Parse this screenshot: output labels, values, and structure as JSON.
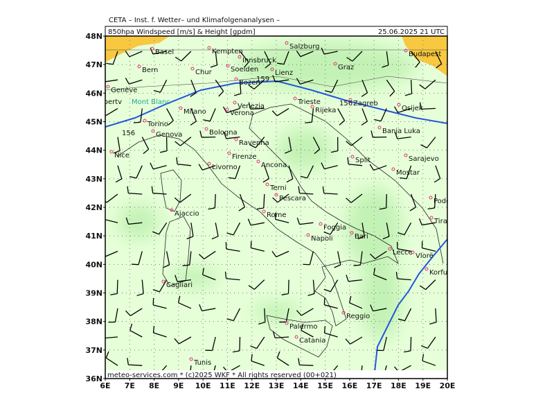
{
  "header": {
    "institute": "CETA – Inst. f. Wetter– und Klimafolgenanalysen –",
    "product": "850hpa Windspeed [m/s] & Height [gpdm]",
    "valid": "25.06.2025 21 UTC"
  },
  "axes": {
    "lat": [
      "48N",
      "47N",
      "46N",
      "45N",
      "44N",
      "43N",
      "42N",
      "41N",
      "40N",
      "39N",
      "38N",
      "37N",
      "36N"
    ],
    "lon": [
      "6E",
      "7E",
      "8E",
      "9E",
      "10E",
      "11E",
      "12E",
      "13E",
      "14E",
      "15E",
      "16E",
      "17E",
      "18E",
      "19E",
      "20E"
    ]
  },
  "cities": [
    "Basel",
    "Kempten",
    "Salzburg",
    "Innsbruck",
    "Graz",
    "Budapest",
    "Bern",
    "Chur",
    "Soelden",
    "Bozen",
    "Lienz",
    "Genève",
    "Albertv",
    "Milano",
    "Venezia",
    "Verona",
    "Trieste",
    "Rijeka",
    "Zagreb",
    "Osijek",
    "Torino",
    "Genova",
    "Bologna",
    "Ravenna",
    "Firenze",
    "Banja Luka",
    "Nice",
    "Livorno",
    "Ancona",
    "Split",
    "Sarajevo",
    "Mostar",
    "Terni",
    "Pescara",
    "Podgorica",
    "Ajaccio",
    "Rome",
    "Tirana",
    "Foggia",
    "Bari",
    "Napoli",
    "Lecce",
    "Vlorë",
    "Korfu",
    "Cagliari",
    "Reggio",
    "Palermo",
    "Catania",
    "Tunis"
  ],
  "mountains": [
    "Mont Blanc"
  ],
  "contour_labels": [
    "156",
    "156",
    "159"
  ],
  "footer": "meteo-services.com * (c)2025 WKF * All rights reserved (00+021)"
}
